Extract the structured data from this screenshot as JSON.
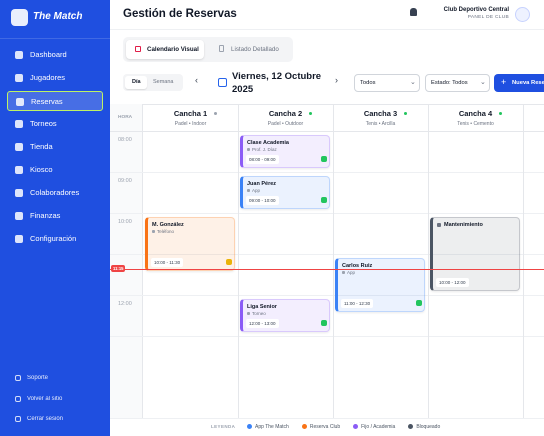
{
  "sidebar": {
    "brand": "The Match",
    "nav": [
      "Dashboard",
      "Jugadores",
      "Reservas",
      "Torneos",
      "Tienda",
      "Kiosco",
      "Colaboradores",
      "Finanzas",
      "Configuración"
    ],
    "footer": [
      "Soporte",
      "Volver al sitio",
      "Cerrar sesión"
    ]
  },
  "header": {
    "title": "Gestión de Reservas",
    "club": "Club Deportivo Central",
    "role": "PANEL DE CLUB"
  },
  "tabs": [
    "Calendario Visual",
    "Listado Detallado"
  ],
  "toolbar": {
    "views": [
      "Día",
      "Semana"
    ],
    "date": "Viernes, 12 Octubre 2025",
    "filter": "Todos",
    "status": "Estado: Todos",
    "button": "Nueva Reserva"
  },
  "calendar": {
    "hour_header": "HORA",
    "hours": [
      "08:00",
      "09:00",
      "10:00",
      null,
      "12:00"
    ],
    "now": "11:15",
    "courts": [
      {
        "name": "Cancha 1",
        "detail": "Padel • Indoor",
        "status_color": "#9ca3af",
        "bookings": [
          {
            "title": "M. González",
            "sub": "Teléfono",
            "time": "10:00 - 11:30",
            "color": "#f97316"
          }
        ]
      },
      {
        "name": "Cancha 2",
        "detail": "Padel • Outdoor",
        "status_color": "#22c55e",
        "bookings": [
          {
            "title": "Clase Academia",
            "sub": "Prof. J. Díaz",
            "time": "08:00 - 09:00",
            "color": "#8b5cf6"
          },
          {
            "title": "Juan Pérez",
            "sub": "App",
            "time": "09:00 - 10:00",
            "color": "#3b82f6"
          },
          {
            "title": "Liga Senior",
            "sub": "Torneo",
            "time": "12:00 - 13:00",
            "color": "#8b5cf6"
          }
        ]
      },
      {
        "name": "Cancha 3",
        "detail": "Tenis • Arcilla",
        "status_color": "#22c55e",
        "bookings": [
          {
            "title": "Carlos Ruiz",
            "sub": "App",
            "time": "11:00 - 12:30",
            "color": "#3b82f6"
          }
        ]
      },
      {
        "name": "Cancha 4",
        "detail": "Tenis • Cemento",
        "status_color": "#22c55e",
        "bookings": [
          {
            "title": "Mantenimiento",
            "sub": null,
            "time": "10:00 - 12:00",
            "color": "#4b5563"
          }
        ]
      }
    ]
  },
  "legend": {
    "title": "LEYENDA",
    "items": [
      {
        "label": "App The Match",
        "color": "#3b82f6"
      },
      {
        "label": "Reserva Club",
        "color": "#f97316"
      },
      {
        "label": "Fijo / Academia",
        "color": "#8b5cf6"
      },
      {
        "label": "Bloqueado",
        "color": "#4b5563"
      }
    ]
  }
}
